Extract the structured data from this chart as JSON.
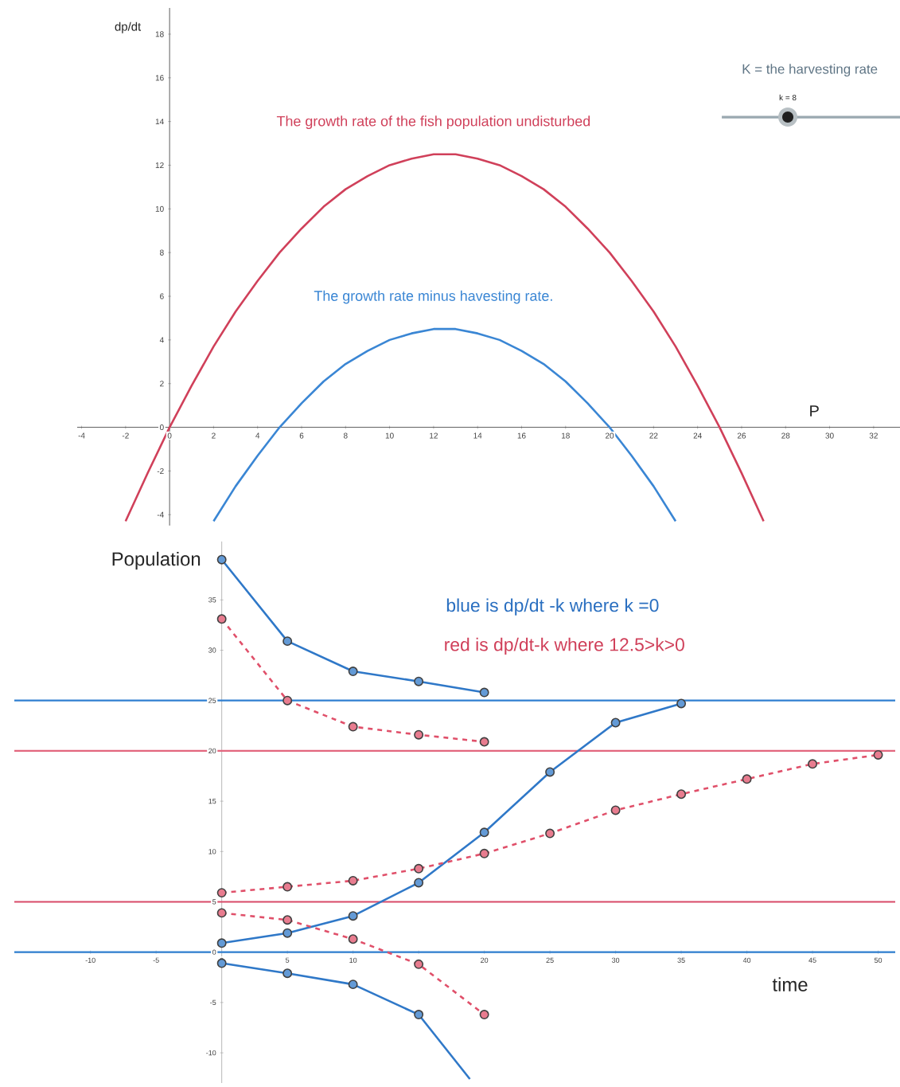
{
  "chart_data": [
    {
      "type": "line",
      "xlabel": "P",
      "ylabel": "dp/dt",
      "xlim": [
        -4.2,
        33.2
      ],
      "ylim": [
        -4.5,
        19.2
      ],
      "xticks": [
        -4,
        -2,
        0,
        2,
        4,
        6,
        8,
        10,
        12,
        14,
        16,
        18,
        20,
        22,
        24,
        26,
        28,
        30,
        32
      ],
      "yticks": [
        -4,
        -2,
        0,
        2,
        4,
        6,
        8,
        10,
        12,
        14,
        16,
        18
      ],
      "marker": "none",
      "line_style": "solid",
      "annotations": [
        "K = the harvesting rate",
        "k = 8"
      ],
      "series": [
        {
          "name": "The growth rate of the fish population undisturbed",
          "color": "#d0405a",
          "x": [
            -2,
            -1,
            0,
            1,
            2,
            3,
            4,
            5,
            6,
            7,
            8,
            9,
            10,
            11,
            12,
            12.5,
            13,
            14,
            15,
            16,
            17,
            18,
            19,
            20,
            21,
            22,
            23,
            24,
            25,
            26,
            27
          ],
          "values": [
            -4.3,
            -2.1,
            0,
            1.9,
            3.7,
            5.3,
            6.7,
            8,
            9.1,
            10.1,
            10.9,
            11.5,
            12,
            12.3,
            12.5,
            12.5,
            12.5,
            12.3,
            12,
            11.5,
            10.9,
            10.1,
            9.1,
            8,
            6.7,
            5.3,
            3.7,
            1.9,
            0,
            -2.1,
            -4.3
          ]
        },
        {
          "name": "The growth rate minus havesting rate.",
          "color": "#3a86d4",
          "x": [
            2,
            3,
            4,
            5,
            6,
            7,
            8,
            9,
            10,
            11,
            12,
            12.5,
            13,
            14,
            15,
            16,
            17,
            18,
            19,
            20,
            21,
            22,
            23
          ],
          "values": [
            -4.3,
            -2.7,
            -1.3,
            0,
            1.1,
            2.1,
            2.9,
            3.5,
            4,
            4.3,
            4.5,
            4.5,
            4.5,
            4.3,
            4,
            3.5,
            2.9,
            2.1,
            1.1,
            0,
            -1.3,
            -2.7,
            -4.3
          ]
        }
      ]
    },
    {
      "type": "line",
      "xlabel": "time",
      "ylabel": "Population",
      "xlim": [
        -15.8,
        51.3
      ],
      "ylim": [
        -13,
        40.8
      ],
      "xticks": [
        -10,
        -5,
        0,
        5,
        10,
        {
          "value": 15,
          "label": null
        },
        20,
        25,
        30,
        35,
        40,
        45,
        50
      ],
      "yticks": [
        -10,
        -5,
        0,
        5,
        10,
        15,
        20,
        25,
        30,
        35
      ],
      "marker": "circle",
      "line_style": "solid",
      "annotations": [
        "blue is dp/dt -k where k =0",
        "red is dp/dt-k where 12.5>k>0"
      ],
      "ref_lines": [
        {
          "axis": "y",
          "value": 25,
          "color": "#2f7fd0"
        },
        {
          "axis": "y",
          "value": 20,
          "color": "#e2667e"
        },
        {
          "axis": "y",
          "value": 5,
          "color": "#d84a68"
        },
        {
          "axis": "y",
          "value": 0,
          "color": "#2f7fd0"
        }
      ],
      "series": [
        {
          "color": "#2f78c8",
          "x": [
            0,
            5,
            10,
            15,
            20
          ],
          "values": [
            39,
            30.9,
            27.9,
            26.9,
            25.8
          ]
        },
        {
          "color": "#e0506a",
          "line_style": "dashed",
          "x": [
            0,
            5,
            10,
            15,
            20
          ],
          "values": [
            33.1,
            25,
            22.4,
            21.6,
            20.9
          ]
        },
        {
          "color": "#2f78c8",
          "x": [
            0,
            5,
            10,
            15,
            20,
            25,
            30,
            35
          ],
          "values": [
            0.9,
            1.9,
            3.6,
            6.9,
            11.9,
            17.9,
            22.8,
            24.7
          ]
        },
        {
          "color": "#e0506a",
          "line_style": "dashed",
          "x": [
            0,
            5,
            10,
            15,
            20,
            25,
            30,
            35,
            40,
            45,
            50
          ],
          "values": [
            5.9,
            6.5,
            7.1,
            8.3,
            9.8,
            11.8,
            14.1,
            15.7,
            17.2,
            18.7,
            19.6
          ]
        },
        {
          "color": "#e0506a",
          "line_style": "dashed",
          "x": [
            0,
            5,
            10,
            15,
            20
          ],
          "values": [
            3.9,
            3.2,
            1.3,
            -1.2,
            -6.2
          ]
        },
        {
          "color": "#2f78c8",
          "x": [
            0,
            5,
            10,
            15
          ],
          "values": [
            -1.1,
            -2.1,
            -3.2,
            -6.2
          ]
        },
        {
          "color": "#2f78c8",
          "marker": "none",
          "x": [
            15,
            18.9
          ],
          "values": [
            -6.2,
            -12.6
          ]
        }
      ]
    }
  ]
}
